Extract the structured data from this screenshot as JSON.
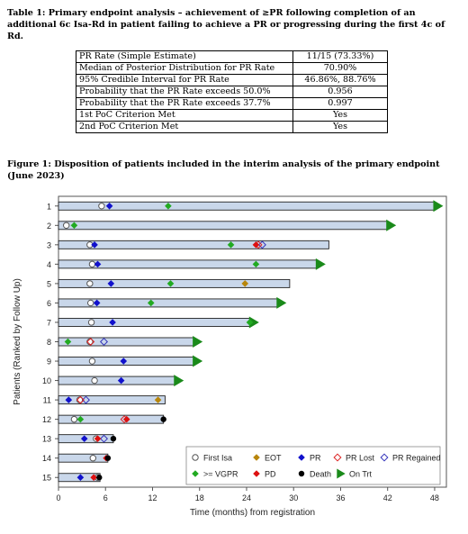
{
  "table": {
    "caption": "Table 1: Primary endpoint analysis – achievement of ≥PR following completion of an additional 6c Isa-Rd in patient failing to achieve a PR or progressing during the first 4c of Rd.",
    "rows": [
      {
        "label": "PR Rate (Simple Estimate)",
        "value": "11/15 (73.33%)"
      },
      {
        "label": "Median of Posterior Distribution for PR Rate",
        "value": "70.90%"
      },
      {
        "label": "95% Credible Interval for PR Rate",
        "value": "46.86%, 88.76%"
      },
      {
        "label": "Probability that the PR Rate exceeds 50.0%",
        "value": "0.956"
      },
      {
        "label": "Probability that the PR Rate exceeds 37.7%",
        "value": "0.997"
      },
      {
        "label": "1st PoC Criterion Met",
        "value": "Yes"
      },
      {
        "label": "2nd PoC Criterion Met",
        "value": "Yes"
      }
    ]
  },
  "figure": {
    "caption": "Figure 1: Disposition of patients included in the interim analysis of the primary endpoint (June 2023)"
  },
  "colors": {
    "bar_fill": "#c9d7ea",
    "bar_stroke": "#222222",
    "first_isa": "#555555",
    "eot": "#b8860b",
    "pr": "#1111cc",
    "pr_lost": "#dd2222",
    "pr_regained": "#3333bb",
    "vgpr": "#22aa22",
    "pd": "#dd1111",
    "death": "#000000",
    "on_trt": "#1a8a1a"
  },
  "chart_data": {
    "type": "swimmer",
    "xlabel": "Time (months) from registration",
    "ylabel": "Patients (Ranked by Follow Up)",
    "xlim": [
      0,
      49.5
    ],
    "xticks": [
      0,
      6,
      12,
      18,
      24,
      30,
      36,
      42,
      48
    ],
    "legend": {
      "placement": "bottom-right",
      "entries": [
        {
          "key": "first_isa",
          "label": "First Isa"
        },
        {
          "key": "eot",
          "label": "EOT"
        },
        {
          "key": "pr",
          "label": "PR"
        },
        {
          "key": "pr_lost",
          "label": "PR Lost"
        },
        {
          "key": "pr_regained",
          "label": "PR Regained"
        },
        {
          "key": "vgpr",
          "label": ">= VGPR"
        },
        {
          "key": "pd",
          "label": "PD"
        },
        {
          "key": "death",
          "label": "Death"
        },
        {
          "key": "on_trt",
          "label": "On Trt"
        }
      ]
    },
    "patients": [
      {
        "id": "1",
        "end": 48.0,
        "on_trt": true,
        "first_isa": 5.5,
        "pr": [
          6.5
        ],
        "vgpr": [
          14.0
        ]
      },
      {
        "id": "2",
        "end": 42.0,
        "on_trt": true,
        "first_isa": 1.0,
        "vgpr": [
          2.0
        ]
      },
      {
        "id": "3",
        "end": 34.5,
        "first_isa": 4.0,
        "pr": [
          4.6
        ],
        "vgpr": [
          22.0
        ],
        "pd": [
          25.2
        ],
        "pr_lost": [
          25.5
        ],
        "pr_regained": [
          26.0
        ]
      },
      {
        "id": "4",
        "end": 33.0,
        "on_trt": true,
        "first_isa": 4.3,
        "pr": [
          5.0
        ],
        "vgpr": [
          25.2
        ]
      },
      {
        "id": "5",
        "end": 29.5,
        "first_isa": 4.0,
        "pr": [
          6.7
        ],
        "vgpr": [
          14.3
        ],
        "eot": [
          23.8
        ]
      },
      {
        "id": "6",
        "end": 28.0,
        "on_trt": true,
        "first_isa": 4.1,
        "pr": [
          4.9
        ],
        "vgpr": [
          11.8
        ]
      },
      {
        "id": "7",
        "end": 24.5,
        "on_trt": true,
        "first_isa": 4.2,
        "pr": [
          6.9
        ],
        "vgpr": [
          24.4
        ]
      },
      {
        "id": "8",
        "end": 17.3,
        "on_trt": true,
        "first_isa": 4.0,
        "vgpr": [
          1.2
        ],
        "pr_lost": [
          4.1
        ],
        "pr_regained": [
          5.8
        ]
      },
      {
        "id": "9",
        "end": 17.3,
        "on_trt": true,
        "first_isa": 4.3,
        "pr": [
          8.3
        ]
      },
      {
        "id": "10",
        "end": 14.9,
        "on_trt": true,
        "first_isa": 4.6,
        "pr": [
          8.0
        ]
      },
      {
        "id": "11",
        "end": 13.6,
        "first_isa": 2.7,
        "pr": [
          1.3
        ],
        "pr_lost": [
          2.8
        ],
        "pr_regained": [
          3.5
        ],
        "eot": [
          12.7
        ]
      },
      {
        "id": "12",
        "end": 13.4,
        "first_isa": 2.0,
        "vgpr": [
          2.8
        ],
        "pd": [
          8.7
        ],
        "pr_lost": [
          8.4
        ],
        "death": [
          13.4
        ]
      },
      {
        "id": "13",
        "end": 7.0,
        "first_isa": 4.8,
        "pr": [
          3.3
        ],
        "pr_regained": [
          5.8
        ],
        "pd": [
          5.0
        ],
        "death": [
          7.0
        ]
      },
      {
        "id": "14",
        "end": 6.3,
        "first_isa": 4.4,
        "pd": [
          6.1
        ],
        "death": [
          6.3
        ]
      },
      {
        "id": "15",
        "end": 5.3,
        "first_isa": 5.0,
        "pr": [
          2.8
        ],
        "pd": [
          4.5
        ],
        "death": [
          5.2
        ]
      }
    ]
  }
}
